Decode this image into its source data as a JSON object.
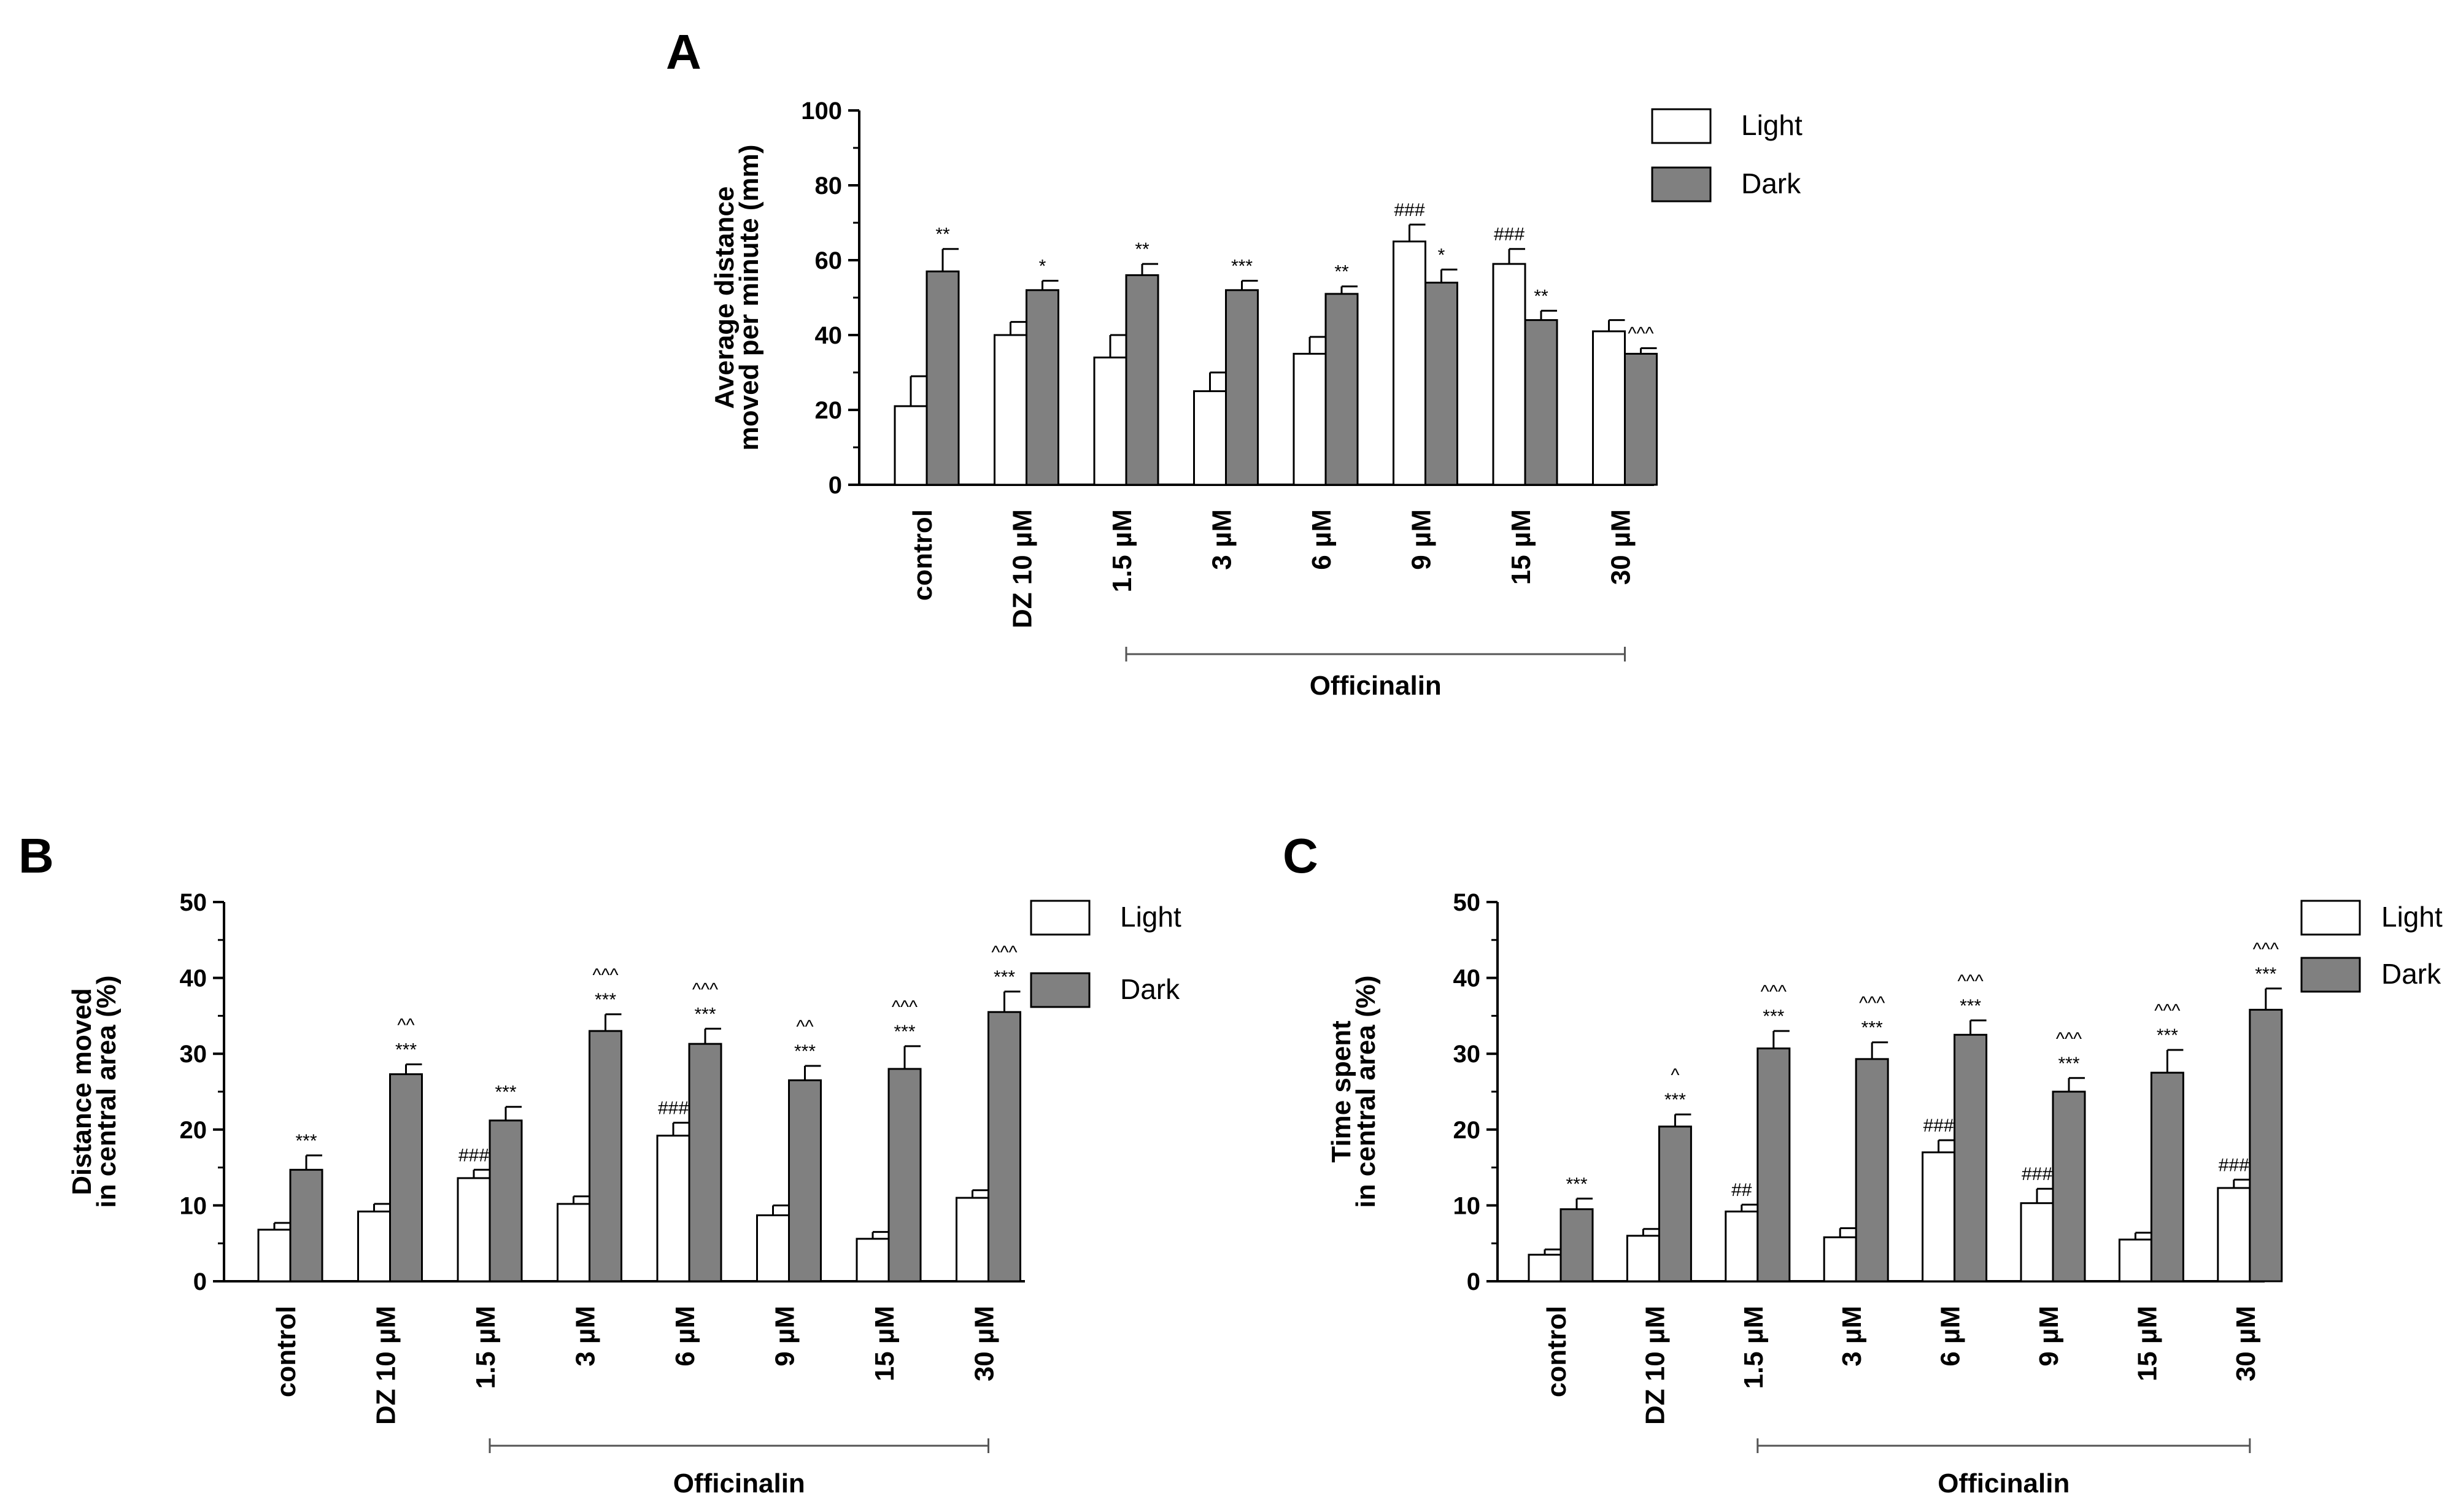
{
  "figure_title": "",
  "colors": {
    "light": "#ffffff",
    "dark": "#808080",
    "stroke": "#000000"
  },
  "chart_data": [
    {
      "panel": "A",
      "type": "bar",
      "title": "",
      "ylabel": "Average distance moved per minute (mm)",
      "ylabel_lines": [
        "Average distance",
        "moved per minute (mm)"
      ],
      "xlabel": "",
      "ylim": [
        0,
        100
      ],
      "yticks": [
        0,
        20,
        40,
        60,
        80,
        100
      ],
      "categories": [
        "control",
        "DZ 10 µM",
        "1.5 µM",
        "3 µM",
        "6 µM",
        "9 µM",
        "15 µM",
        "30 µM"
      ],
      "group_label": "Officinalin",
      "group_from": 2,
      "group_to": 7,
      "legend_position": "top-right",
      "series": [
        {
          "name": "Light",
          "values": [
            21,
            40,
            34,
            25,
            35,
            65,
            59,
            41
          ],
          "errors": [
            8,
            3.5,
            6,
            5,
            4.5,
            4.5,
            4,
            3
          ],
          "annotations": [
            "",
            "",
            "",
            "",
            "",
            "###",
            "###",
            ""
          ]
        },
        {
          "name": "Dark",
          "values": [
            57,
            52,
            56,
            52,
            51,
            54,
            44,
            35
          ],
          "errors": [
            6,
            2.5,
            3,
            2.5,
            2,
            3.5,
            2.5,
            1.5
          ],
          "annotations": [
            "**",
            "*",
            "**",
            "***",
            "**",
            "*",
            "**",
            "^^^"
          ]
        }
      ]
    },
    {
      "panel": "B",
      "type": "bar",
      "title": "",
      "ylabel": "Distance moved in central area (%)",
      "ylabel_lines": [
        "Distance moved",
        "in central area (%)"
      ],
      "xlabel": "",
      "ylim": [
        0,
        50
      ],
      "yticks": [
        0,
        10,
        20,
        30,
        40,
        50
      ],
      "categories": [
        "control",
        "DZ 10 µM",
        "1.5 µM",
        "3 µM",
        "6 µM",
        "9 µM",
        "15 µM",
        "30 µM"
      ],
      "group_label": "Officinalin",
      "group_from": 2,
      "group_to": 7,
      "legend_position": "top-right",
      "series": [
        {
          "name": "Light",
          "values": [
            6.8,
            9.2,
            13.6,
            10.2,
            19.2,
            8.7,
            5.6,
            11.0
          ],
          "errors": [
            0.9,
            1.0,
            1.1,
            1.0,
            1.7,
            1.3,
            0.9,
            1.0
          ],
          "annotations": [
            "",
            "",
            "###",
            "",
            "###",
            "",
            "",
            ""
          ]
        },
        {
          "name": "Dark",
          "values": [
            14.7,
            27.3,
            21.2,
            33.0,
            31.3,
            26.5,
            28.0,
            35.5
          ],
          "errors": [
            1.9,
            1.3,
            1.8,
            2.2,
            2.0,
            1.9,
            3.0,
            2.7
          ],
          "annotations": [
            "***",
            "***",
            "***",
            "***",
            "***",
            "***",
            "***",
            "***"
          ],
          "annotations2": [
            "",
            "^^",
            "",
            "^^^",
            "^^^",
            "^^",
            "^^^",
            "^^^"
          ]
        }
      ]
    },
    {
      "panel": "C",
      "type": "bar",
      "title": "",
      "ylabel": "Time spent in central area (%)",
      "ylabel_lines": [
        "Time spent",
        "in central area (%)"
      ],
      "xlabel": "",
      "ylim": [
        0,
        50
      ],
      "yticks": [
        0,
        10,
        20,
        30,
        40,
        50
      ],
      "categories": [
        "control",
        "DZ 10 µM",
        "1.5 µM",
        "3 µM",
        "6 µM",
        "9 µM",
        "15 µM",
        "30 µM"
      ],
      "group_label": "Officinalin",
      "group_from": 2,
      "group_to": 7,
      "legend_position": "top-right",
      "series": [
        {
          "name": "Light",
          "values": [
            3.5,
            6.0,
            9.2,
            5.8,
            17.0,
            10.3,
            5.5,
            12.3
          ],
          "errors": [
            0.7,
            0.9,
            0.9,
            1.2,
            1.6,
            1.9,
            0.9,
            1.1
          ],
          "annotations": [
            "",
            "",
            "##",
            "",
            "###",
            "###",
            "",
            "###"
          ]
        },
        {
          "name": "Dark",
          "values": [
            9.5,
            20.4,
            30.7,
            29.3,
            32.5,
            25.0,
            27.5,
            35.8
          ],
          "errors": [
            1.4,
            1.6,
            2.3,
            2.2,
            1.9,
            1.8,
            3.0,
            2.8
          ],
          "annotations": [
            "***",
            "***",
            "***",
            "***",
            "***",
            "***",
            "***",
            "***"
          ],
          "annotations2": [
            "",
            "^",
            "^^^",
            "^^^",
            "^^^",
            "^^^",
            "^^^",
            "^^^"
          ]
        }
      ]
    }
  ]
}
